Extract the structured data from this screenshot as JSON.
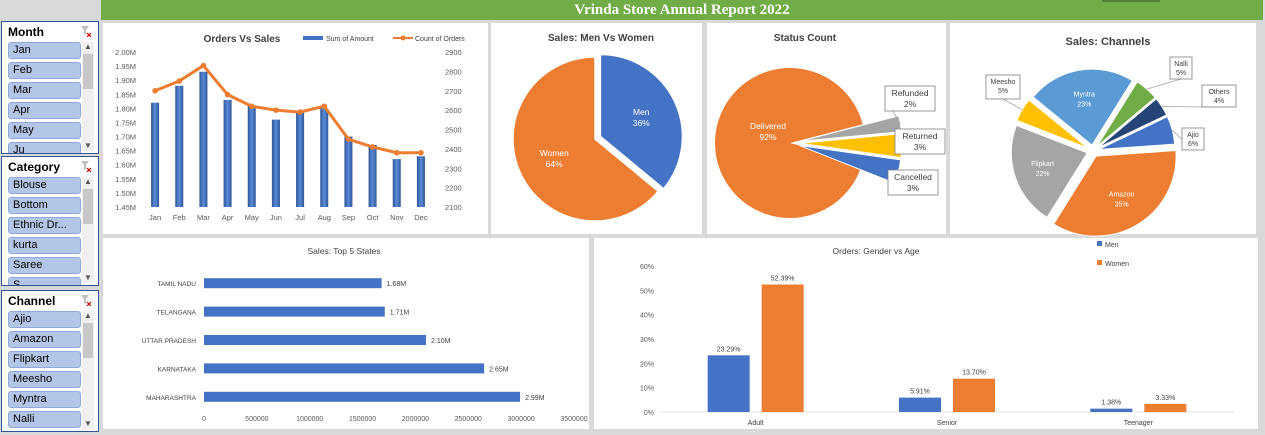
{
  "report_title": "Vrinda Store Annual Report 2022",
  "slicers": {
    "month": {
      "title": "Month",
      "items": [
        "Jan",
        "Feb",
        "Mar",
        "Apr",
        "May",
        "Ju"
      ]
    },
    "category": {
      "title": "Category",
      "items": [
        "Blouse",
        "Bottom",
        "Ethnic Dr...",
        "kurta",
        "Saree",
        "S"
      ]
    },
    "channel": {
      "title": "Channel",
      "items": [
        "Ajio",
        "Amazon",
        "Flipkart",
        "Meesho",
        "Myntra",
        "Nalli"
      ]
    }
  },
  "colors": {
    "blue": "#4472c4",
    "orange": "#ed7d31",
    "gray": "#a5a5a5",
    "yellow": "#ffc000",
    "lightblue": "#5b9bd5",
    "green": "#70ad47",
    "navy": "#264478",
    "header_green": "#70ad47"
  },
  "chart_data": [
    {
      "id": "orders_vs_sales",
      "type": "bar",
      "title": "Orders Vs Sales",
      "categories": [
        "Jan",
        "Feb",
        "Mar",
        "Apr",
        "May",
        "Jun",
        "Jul",
        "Aug",
        "Sep",
        "Oct",
        "Nov",
        "Dec"
      ],
      "series": [
        {
          "name": "Sum of Amount",
          "type": "bar",
          "axis": "left",
          "values": [
            1.82,
            1.88,
            1.93,
            1.83,
            1.81,
            1.76,
            1.79,
            1.8,
            1.7,
            1.67,
            1.62,
            1.63
          ]
        },
        {
          "name": "Count of Orders",
          "type": "line",
          "axis": "right",
          "values": [
            2700,
            2750,
            2830,
            2680,
            2620,
            2600,
            2590,
            2620,
            2450,
            2410,
            2380,
            2380
          ]
        }
      ],
      "y_left_ticks": [
        "2.00M",
        "1.95M",
        "1.90M",
        "1.85M",
        "1.80M",
        "1.75M",
        "1.70M",
        "1.65M",
        "1.60M",
        "1.55M",
        "1.50M",
        "1.45M"
      ],
      "y_left_range": [
        1.45,
        2.0
      ],
      "y_right_ticks": [
        "2900",
        "2800",
        "2700",
        "2600",
        "2500",
        "2400",
        "2300",
        "2200",
        "2100"
      ],
      "y_right_range": [
        2100,
        2900
      ]
    },
    {
      "id": "men_vs_women",
      "type": "pie",
      "title": "Sales: Men Vs Women",
      "slices": [
        {
          "label": "Men",
          "value": 36,
          "pct": "36%",
          "color": "#4472c4"
        },
        {
          "label": "Women",
          "value": 64,
          "pct": "64%",
          "color": "#ed7d31"
        }
      ]
    },
    {
      "id": "status_count",
      "type": "pie",
      "title": "Status Count",
      "slices": [
        {
          "label": "Delivered",
          "value": 92,
          "pct": "92%",
          "color": "#ed7d31"
        },
        {
          "label": "Refunded",
          "value": 2,
          "pct": "2%",
          "color": "#a5a5a5"
        },
        {
          "label": "Returned",
          "value": 3,
          "pct": "3%",
          "color": "#ffc000"
        },
        {
          "label": "Cancelled",
          "value": 3,
          "pct": "3%",
          "color": "#4472c4"
        }
      ]
    },
    {
      "id": "sales_channels",
      "type": "pie",
      "title": "Sales: Channels",
      "slices": [
        {
          "label": "Amazon",
          "value": 35,
          "pct": "35%",
          "color": "#ed7d31"
        },
        {
          "label": "Flipkart",
          "value": 22,
          "pct": "22%",
          "color": "#a5a5a5"
        },
        {
          "label": "Meesho",
          "value": 5,
          "pct": "5%",
          "color": "#ffc000"
        },
        {
          "label": "Myntra",
          "value": 23,
          "pct": "23%",
          "color": "#5b9bd5"
        },
        {
          "label": "Nalli",
          "value": 5,
          "pct": "5%",
          "color": "#70ad47"
        },
        {
          "label": "Others",
          "value": 4,
          "pct": "4%",
          "color": "#264478"
        },
        {
          "label": "Ajio",
          "value": 6,
          "pct": "6%",
          "color": "#4472c4"
        }
      ]
    },
    {
      "id": "top_states",
      "type": "bar",
      "orientation": "horizontal",
      "title": "Sales: Top 5 States",
      "categories": [
        "TAMIL NADU",
        "TELANGANA",
        "UTTAR PRADESH",
        "KARNATAKA",
        "MAHARASHTRA"
      ],
      "values": [
        1680000,
        1710000,
        2100000,
        2650000,
        2990000
      ],
      "value_labels": [
        "1.68M",
        "1.71M",
        "2.10M",
        "2.65M",
        "2.99M"
      ],
      "x_ticks": [
        "0",
        "500000",
        "1000000",
        "1500000",
        "2000000",
        "2500000",
        "3000000",
        "3500000"
      ],
      "xlim": [
        0,
        3500000
      ]
    },
    {
      "id": "gender_vs_age",
      "type": "bar",
      "title": "Orders: Gender vs Age",
      "categories": [
        "Adult",
        "Senior",
        "Teenager"
      ],
      "series": [
        {
          "name": "Men",
          "color": "#4472c4",
          "values": [
            23.29,
            5.91,
            1.38
          ],
          "labels": [
            "23.29%",
            "5.91%",
            "1.38%"
          ]
        },
        {
          "name": "Women",
          "color": "#ed7d31",
          "values": [
            52.39,
            13.7,
            3.33
          ],
          "labels": [
            "52.39%",
            "13.70%",
            "3.33%"
          ]
        }
      ],
      "y_ticks": [
        "60%",
        "50%",
        "40%",
        "30%",
        "20%",
        "10%",
        "0%"
      ],
      "ylim": [
        0,
        60
      ]
    }
  ]
}
